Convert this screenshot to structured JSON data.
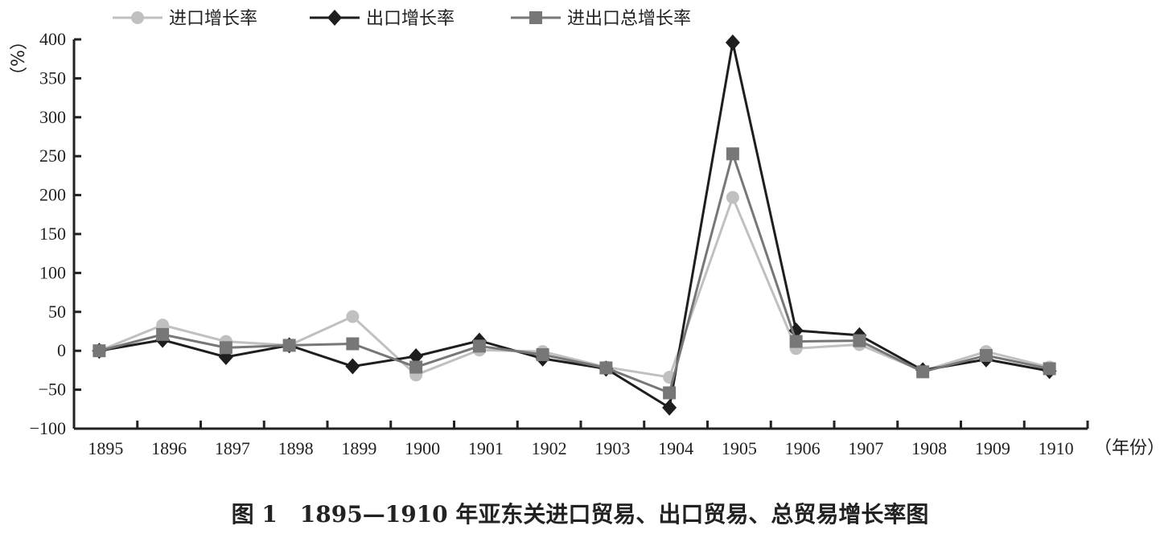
{
  "chart_data": {
    "type": "line",
    "title": "图 1　1895—1910 年亚东关进口贸易、出口贸易、总贸易增长率图",
    "xlabel": "（年份）",
    "ylabel": "（%）",
    "ylim": [
      -100,
      400
    ],
    "yticks": [
      -100,
      -50,
      0,
      50,
      100,
      150,
      200,
      250,
      300,
      350,
      400
    ],
    "grid": false,
    "legend_position": "top",
    "categories": [
      "1895",
      "1896",
      "1897",
      "1898",
      "1899",
      "1900",
      "1901",
      "1902",
      "1903",
      "1904",
      "1905",
      "1906",
      "1907",
      "1908",
      "1909",
      "1910"
    ],
    "series": [
      {
        "name": "进口增长率",
        "color": "#c0c0c0",
        "marker": "circle",
        "values": [
          0,
          33,
          12,
          7,
          44,
          -31,
          1,
          -1,
          -21,
          -34,
          197,
          3,
          8,
          -26,
          -1,
          -21
        ]
      },
      {
        "name": "出口增长率",
        "color": "#1e1e1e",
        "marker": "diamond",
        "values": [
          0,
          14,
          -8,
          7,
          -20,
          -7,
          13,
          -10,
          -23,
          -73,
          396,
          26,
          20,
          -25,
          -11,
          -26
        ]
      },
      {
        "name": "进出口总增长率",
        "color": "#777777",
        "marker": "square",
        "values": [
          0,
          21,
          4,
          7,
          9,
          -21,
          6,
          -5,
          -22,
          -54,
          253,
          12,
          13,
          -27,
          -6,
          -23
        ]
      }
    ]
  }
}
